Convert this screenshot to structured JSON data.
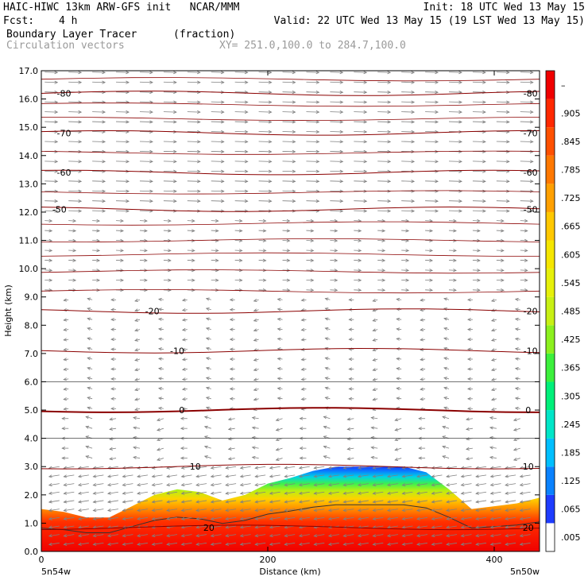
{
  "header": {
    "line1_left": "HAIC-HIWC 13km ARW-GFS init   NCAR/MMM",
    "line1_right": "Init: 18 UTC Wed 13 May 15",
    "fcst_label": "Fcst:",
    "fcst_value": "4 h",
    "valid": "Valid: 22 UTC Wed 13 May 15 (19 LST Wed 13 May 15)",
    "field_name": "Boundary Layer Tracer",
    "field_units": "(fraction)",
    "vectors": "Circulation vectors",
    "xy": "XY= 251.0,100.0 to 284.7,100.0"
  },
  "chart_data": {
    "type": "heatmap",
    "xlabel": "Distance (km)",
    "ylabel": "Height (km)",
    "xlim": [
      0,
      440
    ],
    "ylim": [
      0,
      17
    ],
    "x_ticks": [
      "0",
      "200",
      "400"
    ],
    "y_ticks": [
      "0.0",
      "1.0",
      "2.0",
      "3.0",
      "4.0",
      "5.0",
      "6.0",
      "7.0",
      "8.0",
      "9.0",
      "10.0",
      "11.0",
      "12.0",
      "13.0",
      "14.0",
      "15.0",
      "16.0",
      "17.0"
    ],
    "x_end_labels": {
      "left": "5n54w",
      "right": "5n50w"
    },
    "colorbar": {
      "labels": [
        ".005",
        ".065",
        ".125",
        ".185",
        ".245",
        ".305",
        ".365",
        ".425",
        ".485",
        ".545",
        ".605",
        ".665",
        ".725",
        ".785",
        ".845",
        ".905",
        "–"
      ],
      "colors": [
        "#ffffff",
        "#1e3cff",
        "#0a82ff",
        "#00bfff",
        "#00e6c8",
        "#00f07a",
        "#3cf03c",
        "#8cf01e",
        "#c8f014",
        "#e6f00a",
        "#f5e600",
        "#ffc800",
        "#ffa000",
        "#ff7800",
        "#ff5000",
        "#ff2800",
        "#f00000"
      ]
    },
    "tracer_top_km": [
      [
        0,
        1.5
      ],
      [
        20,
        1.4
      ],
      [
        40,
        1.2
      ],
      [
        60,
        1.2
      ],
      [
        80,
        1.6
      ],
      [
        100,
        2.0
      ],
      [
        120,
        2.2
      ],
      [
        140,
        2.1
      ],
      [
        160,
        1.8
      ],
      [
        180,
        2.0
      ],
      [
        200,
        2.4
      ],
      [
        220,
        2.6
      ],
      [
        240,
        2.85
      ],
      [
        260,
        3.0
      ],
      [
        280,
        3.0
      ],
      [
        300,
        3.0
      ],
      [
        320,
        3.0
      ],
      [
        340,
        2.8
      ],
      [
        360,
        2.2
      ],
      [
        380,
        1.5
      ],
      [
        400,
        1.6
      ],
      [
        420,
        1.7
      ],
      [
        440,
        1.9
      ]
    ],
    "isotherms_c": [
      {
        "label": "-80",
        "height_km": 16.2
      },
      {
        "label": "-70",
        "height_km": 14.8
      },
      {
        "label": "-60",
        "height_km": 13.4
      },
      {
        "label": "-50",
        "height_km": 12.1
      },
      {
        "label": "-20",
        "height_km": 8.5
      },
      {
        "label": "-10",
        "height_km": 7.1
      },
      {
        "label": "0",
        "height_km": 5.0
      },
      {
        "label": "10",
        "height_km": 3.0
      },
      {
        "label": "20",
        "height_km": 0.85
      }
    ],
    "isotherm_labels": [
      {
        "text": "-80",
        "x_km": 20,
        "y_km": 16.2
      },
      {
        "text": "-80",
        "x_km": 432,
        "y_km": 16.2
      },
      {
        "text": "-70",
        "x_km": 20,
        "y_km": 14.8
      },
      {
        "text": "-70",
        "x_km": 432,
        "y_km": 14.8
      },
      {
        "text": "-60",
        "x_km": 20,
        "y_km": 13.4
      },
      {
        "text": "-60",
        "x_km": 432,
        "y_km": 13.4
      },
      {
        "text": "-50",
        "x_km": 16,
        "y_km": 12.1
      },
      {
        "text": "-50",
        "x_km": 432,
        "y_km": 12.1
      },
      {
        "text": "-20",
        "x_km": 98,
        "y_km": 8.5
      },
      {
        "text": "-20",
        "x_km": 432,
        "y_km": 8.5
      },
      {
        "text": "-10",
        "x_km": 120,
        "y_km": 7.1
      },
      {
        "text": "-10",
        "x_km": 432,
        "y_km": 7.1
      },
      {
        "text": "0",
        "x_km": 124,
        "y_km": 5.0
      },
      {
        "text": "0",
        "x_km": 430,
        "y_km": 5.0
      },
      {
        "text": "10",
        "x_km": 136,
        "y_km": 3.0
      },
      {
        "text": "10",
        "x_km": 430,
        "y_km": 3.0
      },
      {
        "text": "20",
        "x_km": 148,
        "y_km": 0.85
      },
      {
        "text": "20",
        "x_km": 430,
        "y_km": 0.85
      }
    ],
    "grid": false
  },
  "colors": {
    "isotherm": "#8b0000",
    "vector": "#808080",
    "bl_contour": "#333333"
  }
}
